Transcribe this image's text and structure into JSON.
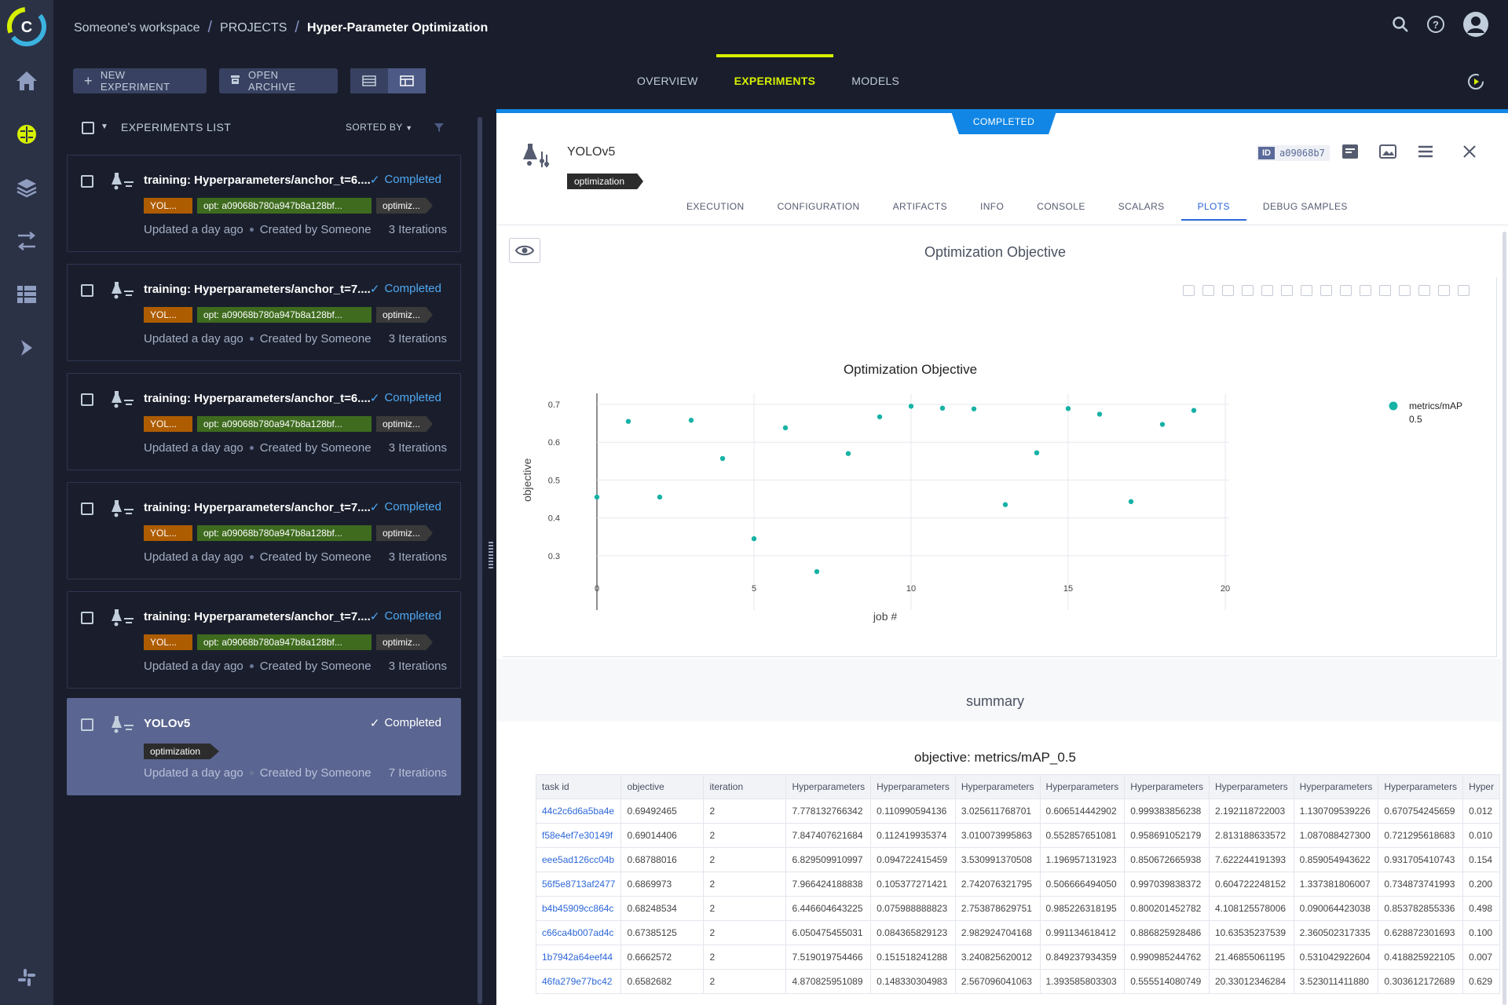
{
  "breadcrumb": {
    "workspace": "Someone's workspace",
    "projects": "PROJECTS",
    "project": "Hyper-Parameter Optimization"
  },
  "toolbar": {
    "new_experiment": "NEW EXPERIMENT",
    "open_archive": "OPEN ARCHIVE"
  },
  "main_tabs": [
    "OVERVIEW",
    "EXPERIMENTS",
    "MODELS"
  ],
  "main_tab_active": "EXPERIMENTS",
  "list": {
    "title": "EXPERIMENTS LIST",
    "sorted_by": "SORTED BY",
    "items": [
      {
        "name": "training: Hyperparameters/anchor_t=6....",
        "status": "Completed",
        "tags": [
          "YOL...",
          "opt: a09068b780a947b8a128bf...",
          "optimiz..."
        ],
        "updated": "Updated a day ago",
        "created": "Created by Someone",
        "iterations": "3 Iterations"
      },
      {
        "name": "training: Hyperparameters/anchor_t=7....",
        "status": "Completed",
        "tags": [
          "YOL...",
          "opt: a09068b780a947b8a128bf...",
          "optimiz..."
        ],
        "updated": "Updated a day ago",
        "created": "Created by Someone",
        "iterations": "3 Iterations"
      },
      {
        "name": "training: Hyperparameters/anchor_t=6....",
        "status": "Completed",
        "tags": [
          "YOL...",
          "opt: a09068b780a947b8a128bf...",
          "optimiz..."
        ],
        "updated": "Updated a day ago",
        "created": "Created by Someone",
        "iterations": "3 Iterations"
      },
      {
        "name": "training: Hyperparameters/anchor_t=7....",
        "status": "Completed",
        "tags": [
          "YOL...",
          "opt: a09068b780a947b8a128bf...",
          "optimiz..."
        ],
        "updated": "Updated a day ago",
        "created": "Created by Someone",
        "iterations": "3 Iterations"
      },
      {
        "name": "training: Hyperparameters/anchor_t=7....",
        "status": "Completed",
        "tags": [
          "YOL...",
          "opt: a09068b780a947b8a128bf...",
          "optimiz..."
        ],
        "updated": "Updated a day ago",
        "created": "Created by Someone",
        "iterations": "3 Iterations"
      },
      {
        "name": "YOLOv5",
        "status": "Completed",
        "tags": [
          "optimization"
        ],
        "updated": "Updated a day ago",
        "created": "Created by Someone",
        "iterations": "7 Iterations"
      }
    ]
  },
  "details": {
    "status_banner": "COMPLETED",
    "title": "YOLOv5",
    "tag": "optimization",
    "id_label": "ID",
    "id_value": "a09068b7",
    "tabs": [
      "EXECUTION",
      "CONFIGURATION",
      "ARTIFACTS",
      "INFO",
      "CONSOLE",
      "SCALARS",
      "PLOTS",
      "DEBUG SAMPLES"
    ],
    "active_tab": "PLOTS",
    "plot_section_title": "Optimization Objective",
    "summary_section_title": "summary",
    "table_title": "objective: metrics/mAP_0.5",
    "table": {
      "columns": [
        "task id",
        "objective",
        "iteration",
        "Hyperparameters",
        "Hyperparameters",
        "Hyperparameters",
        "Hyperparameters",
        "Hyperparameters",
        "Hyperparameters",
        "Hyperparameters",
        "Hyperparameters",
        "Hyper"
      ],
      "rows": [
        [
          "44c2c6d6a5ba4e",
          "0.69492465",
          "2",
          "7.778132766342",
          "0.110990594136",
          "3.025611768701",
          "0.606514442902",
          "0.999383856238",
          "2.192118722003",
          "1.130709539226",
          "0.670754245659",
          "0.012"
        ],
        [
          "f58e4ef7e30149f",
          "0.69014406",
          "2",
          "7.847407621684",
          "0.112419935374",
          "3.010073995863",
          "0.552857651081",
          "0.958691052179",
          "2.813188633572",
          "1.087088427300",
          "0.721295618683",
          "0.010"
        ],
        [
          "eee5ad126cc04b",
          "0.68788016",
          "2",
          "6.829509910997",
          "0.094722415459",
          "3.530991370508",
          "1.196957131923",
          "0.850672665938",
          "7.622244191393",
          "0.859054943622",
          "0.931705410743",
          "0.154"
        ],
        [
          "56f5e8713af2477",
          "0.6869973",
          "2",
          "7.966424188838",
          "0.105377271421",
          "2.742076321795",
          "0.506666494050",
          "0.997039838372",
          "0.604722248152",
          "1.337381806007",
          "0.734873741993",
          "0.200"
        ],
        [
          "b4b45909cc864c",
          "0.68248534",
          "2",
          "6.446604643225",
          "0.075988888823",
          "2.753878629751",
          "0.985226318195",
          "0.800201452782",
          "4.108125578006",
          "0.090064423038",
          "0.853782855336",
          "0.498"
        ],
        [
          "c66ca4b007ad4c",
          "0.67385125",
          "2",
          "6.050475455031",
          "0.084365829123",
          "2.982924704168",
          "0.991134618412",
          "0.886825928486",
          "10.63535237539",
          "2.360502317335",
          "0.628872301693",
          "0.100"
        ],
        [
          "1b7942a64eef44",
          "0.6662572",
          "2",
          "7.519019754466",
          "0.151518241288",
          "3.240825620012",
          "0.849237934359",
          "0.990985244762",
          "21.46855061195",
          "0.531042922604",
          "0.418825922105",
          "0.007"
        ],
        [
          "46fa279e77bc42",
          "0.6582682",
          "2",
          "4.870825951089",
          "0.148330304983",
          "2.567096041063",
          "1.393585803303",
          "0.555514080749",
          "20.33012346284",
          "3.523011411880",
          "0.303612172689",
          "0.629"
        ]
      ]
    }
  },
  "chart_data": {
    "type": "scatter",
    "title": "Optimization Objective",
    "xlabel": "job #",
    "ylabel": "objective",
    "xlim": [
      0,
      20
    ],
    "ylim": [
      0.25,
      0.72
    ],
    "xticks": [
      0,
      5,
      10,
      15,
      20
    ],
    "yticks": [
      0.3,
      0.4,
      0.5,
      0.6,
      0.7
    ],
    "legend_position": "top-right",
    "series": [
      {
        "name": "metrics/mAP 0.5",
        "color": "#17b2a6",
        "x": [
          0,
          1,
          2,
          3,
          4,
          5,
          6,
          7,
          8,
          9,
          10,
          11,
          12,
          13,
          14,
          15,
          16,
          17,
          18,
          19
        ],
        "y": [
          0.455,
          0.655,
          0.455,
          0.658,
          0.557,
          0.345,
          0.638,
          0.258,
          0.57,
          0.667,
          0.695,
          0.69,
          0.688,
          0.435,
          0.572,
          0.689,
          0.674,
          0.443,
          0.647,
          0.684
        ]
      }
    ]
  }
}
